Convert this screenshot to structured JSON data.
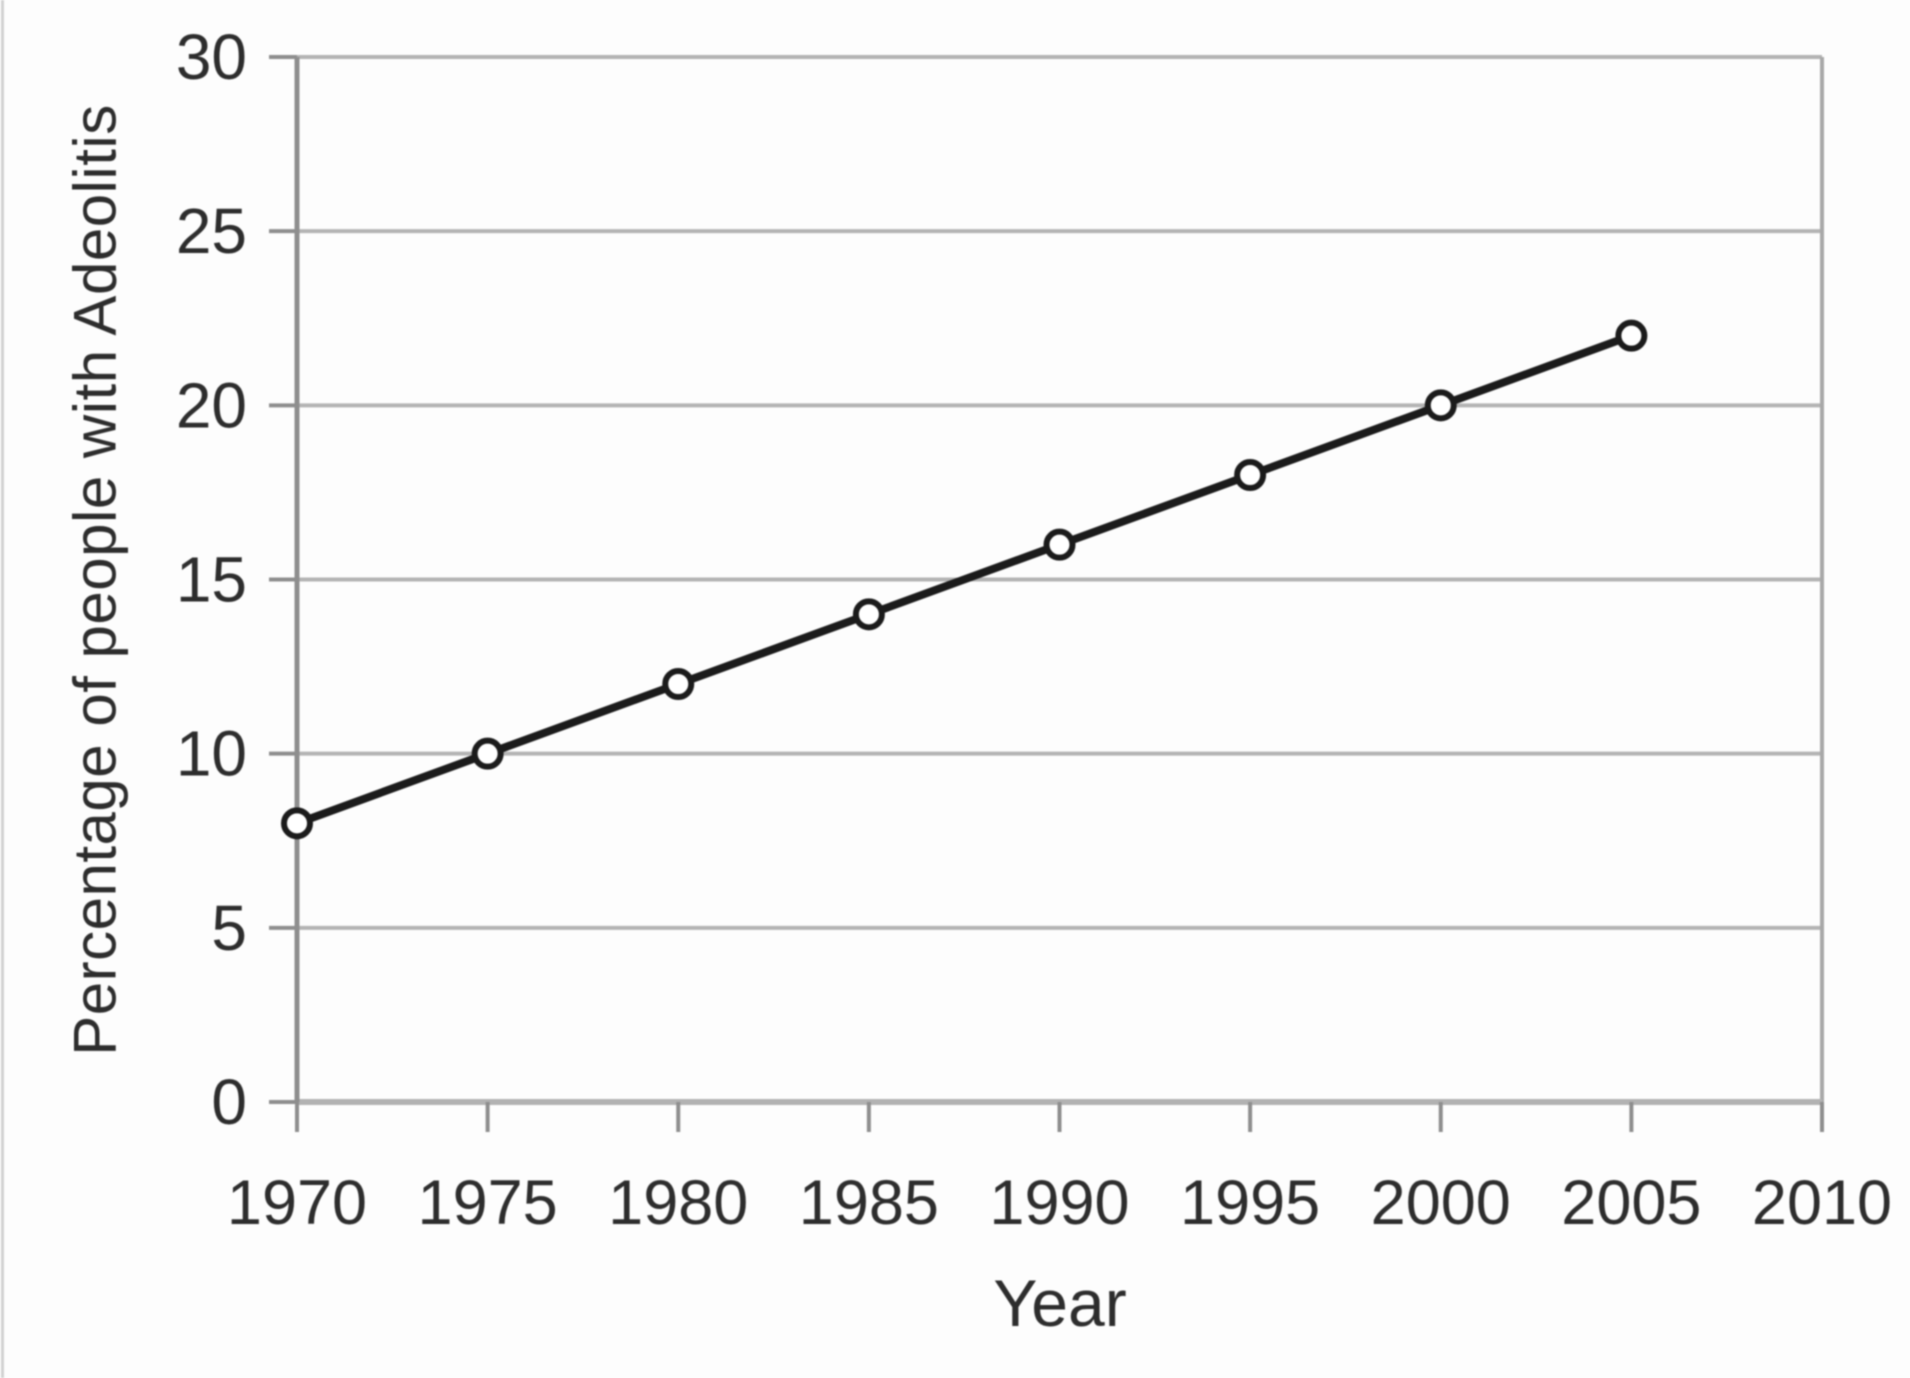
{
  "page": {
    "background": "#fdfdfd",
    "edge_line_color": "#d2d2d2"
  },
  "chart_data": {
    "type": "line",
    "title": "",
    "xlabel": "Year",
    "ylabel": "Percentage of people with Adeolitis",
    "x": [
      1970,
      1975,
      1980,
      1985,
      1990,
      1995,
      2000,
      2005
    ],
    "series": [
      {
        "name": "Percentage of people with Adeolitis",
        "values": [
          8,
          10,
          12,
          14,
          16,
          18,
          20,
          22
        ]
      }
    ],
    "x_ticks": [
      "1970",
      "1975",
      "1980",
      "1985",
      "1990",
      "1995",
      "2000",
      "2005",
      "2010"
    ],
    "y_ticks": [
      "0",
      "5",
      "10",
      "15",
      "20",
      "25",
      "30"
    ],
    "xlim": [
      1970,
      2010
    ],
    "ylim": [
      0,
      30
    ],
    "grid": "horizontal-only",
    "legend": "none",
    "marker": "open-circle",
    "colors": {
      "line": "#1b1b1b",
      "marker_fill": "#ffffff",
      "grid": "#b4b4b4",
      "x_axis": "#b2b2b2",
      "y_axis": "#8e8e8e",
      "tick": "#8e8e8e",
      "plot_border_right": "#a8a8a8",
      "text": "#2d2d2d"
    }
  }
}
